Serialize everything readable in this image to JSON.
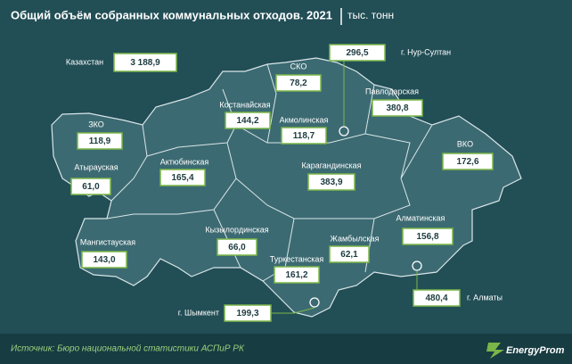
{
  "header": {
    "title": "Общий объём собранных коммунальных отходов. 2021",
    "unit": "тыс. тонн"
  },
  "total": {
    "name": "Казахстан",
    "value": "3 188,9"
  },
  "regions": [
    {
      "name": "СКО",
      "value": "78,2"
    },
    {
      "name": "г. Нур-Султан",
      "value": "296,5"
    },
    {
      "name": "Павлодарская",
      "value": "380,8"
    },
    {
      "name": "Костанайская",
      "value": "144,2"
    },
    {
      "name": "Акмолинская",
      "value": "118,7"
    },
    {
      "name": "ЗКО",
      "value": "118,9"
    },
    {
      "name": "ВКО",
      "value": "172,6"
    },
    {
      "name": "Атырауская",
      "value": "61,0"
    },
    {
      "name": "Актюбинская",
      "value": "165,4"
    },
    {
      "name": "Карагандинская",
      "value": "383,9"
    },
    {
      "name": "Алматинская",
      "value": "156,8"
    },
    {
      "name": "Мангистауская",
      "value": "143,0"
    },
    {
      "name": "Кызылординская",
      "value": "66,0"
    },
    {
      "name": "Жамбылская",
      "value": "62,1"
    },
    {
      "name": "Туркестанская",
      "value": "161,2"
    },
    {
      "name": "г. Шымкент",
      "value": "199,3"
    },
    {
      "name": "г. Алматы",
      "value": "480,4"
    }
  ],
  "footer": {
    "source": "Источник: Бюро национальной статистики АСПиР РК",
    "logo": "EnergyProm"
  }
}
